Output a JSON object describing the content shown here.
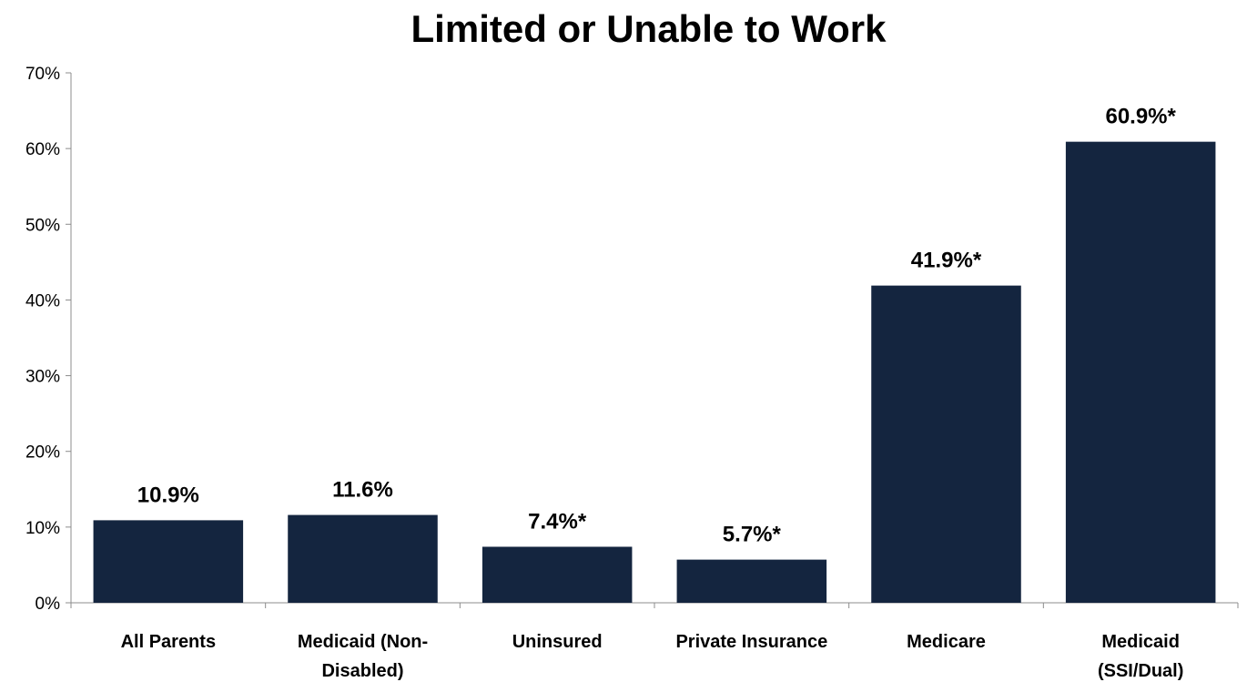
{
  "chart_data": {
    "type": "bar",
    "title": "Limited or Unable to Work",
    "xlabel": "",
    "ylabel": "",
    "ylim": [
      0,
      70
    ],
    "yticks": [
      "0%",
      "10%",
      "20%",
      "30%",
      "40%",
      "50%",
      "60%",
      "70%"
    ],
    "categories": [
      [
        "All Parents"
      ],
      [
        "Medicaid (Non-",
        "Disabled)"
      ],
      [
        "Uninsured"
      ],
      [
        "Private Insurance"
      ],
      [
        "Medicare"
      ],
      [
        "Medicaid",
        "(SSI/Dual)"
      ]
    ],
    "values": [
      10.9,
      11.6,
      7.4,
      5.7,
      41.9,
      60.9
    ],
    "data_labels": [
      "10.9%",
      "11.6%",
      "7.4%*",
      "5.7%*",
      "41.9%*",
      "60.9%*"
    ],
    "bar_color": "#14253f",
    "grid": false,
    "legend": "none"
  }
}
